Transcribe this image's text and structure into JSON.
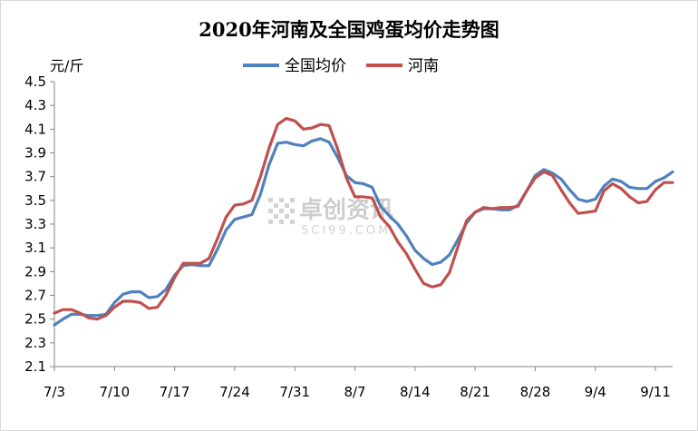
{
  "chart_data": {
    "type": "line",
    "title": "2020年河南及全国鸡蛋均价走势图",
    "unit_label": "元/斤",
    "ylim": [
      2.1,
      4.5
    ],
    "yticks": [
      2.1,
      2.3,
      2.5,
      2.7,
      2.9,
      3.1,
      3.3,
      3.5,
      3.7,
      3.9,
      4.1,
      4.3,
      4.5
    ],
    "ytick_labels": [
      "2.1",
      "2.3",
      "2.5",
      "2.7",
      "2.9",
      "3.1",
      "3.3",
      "3.5",
      "3.7",
      "3.9",
      "4.1",
      "4.3",
      "4.5"
    ],
    "x_start": "7/3",
    "x_end": "9/11",
    "x_tick_labels": [
      "7/3",
      "7/10",
      "7/17",
      "7/24",
      "7/31",
      "8/7",
      "8/14",
      "8/21",
      "8/28",
      "9/4",
      "9/11"
    ],
    "grid": false,
    "legend_position": "top-center",
    "series": [
      {
        "name": "全国均价",
        "color": "#4f81bd",
        "values": [
          2.45,
          2.5,
          2.54,
          2.54,
          2.53,
          2.53,
          2.54,
          2.64,
          2.71,
          2.73,
          2.73,
          2.68,
          2.69,
          2.75,
          2.87,
          2.95,
          2.96,
          2.95,
          2.95,
          3.09,
          3.25,
          3.34,
          3.36,
          3.38,
          3.55,
          3.8,
          3.98,
          3.99,
          3.97,
          3.96,
          4.0,
          4.02,
          3.99,
          3.86,
          3.71,
          3.65,
          3.64,
          3.61,
          3.45,
          3.37,
          3.3,
          3.2,
          3.08,
          3.01,
          2.96,
          2.98,
          3.04,
          3.17,
          3.31,
          3.4,
          3.43,
          3.43,
          3.42,
          3.42,
          3.46,
          3.58,
          3.71,
          3.76,
          3.73,
          3.68,
          3.59,
          3.51,
          3.49,
          3.51,
          3.62,
          3.68,
          3.66,
          3.61,
          3.6,
          3.6,
          3.66,
          3.69,
          3.74
        ]
      },
      {
        "name": "河南",
        "color": "#c0504d",
        "values": [
          2.55,
          2.58,
          2.58,
          2.55,
          2.51,
          2.5,
          2.53,
          2.6,
          2.65,
          2.65,
          2.64,
          2.59,
          2.6,
          2.7,
          2.85,
          2.97,
          2.97,
          2.97,
          3.01,
          3.18,
          3.36,
          3.46,
          3.47,
          3.5,
          3.7,
          3.94,
          4.14,
          4.19,
          4.17,
          4.1,
          4.11,
          4.14,
          4.13,
          3.93,
          3.69,
          3.53,
          3.53,
          3.52,
          3.36,
          3.28,
          3.15,
          3.05,
          2.92,
          2.8,
          2.77,
          2.79,
          2.89,
          3.11,
          3.33,
          3.4,
          3.44,
          3.43,
          3.44,
          3.44,
          3.45,
          3.58,
          3.69,
          3.74,
          3.71,
          3.59,
          3.48,
          3.39,
          3.4,
          3.41,
          3.58,
          3.64,
          3.6,
          3.53,
          3.48,
          3.49,
          3.59,
          3.65,
          3.65
        ]
      }
    ],
    "watermark": {
      "brand": "卓创资讯",
      "site": "SCI99.COM"
    }
  }
}
